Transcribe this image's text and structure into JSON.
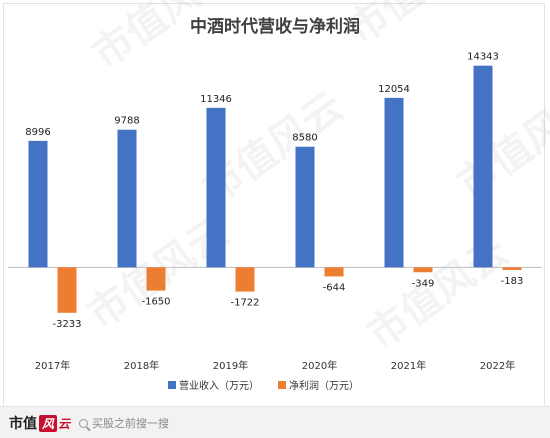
{
  "chart_data": {
    "type": "bar",
    "title": "中酒时代营收与净利润",
    "categories": [
      "2017年",
      "2018年",
      "2019年",
      "2020年",
      "2021年",
      "2022年"
    ],
    "series": [
      {
        "name": "营业收入（万元）",
        "color": "#4472c4",
        "values": [
          8996,
          9788,
          11346,
          8580,
          12054,
          14343
        ]
      },
      {
        "name": "净利润（万元）",
        "color": "#ed7d31",
        "values": [
          -3233,
          -1650,
          -1722,
          -644,
          -349,
          -183
        ]
      }
    ],
    "ylim": [
      -4100,
      15600
    ],
    "grid": false,
    "legend": "bottom"
  },
  "watermark": {
    "text": "市值风云"
  },
  "footer": {
    "brand_text": "市值",
    "brand_feng": "风",
    "brand_yun": "云",
    "search_icon": "search-icon",
    "search_placeholder": "买股之前搜一搜"
  }
}
